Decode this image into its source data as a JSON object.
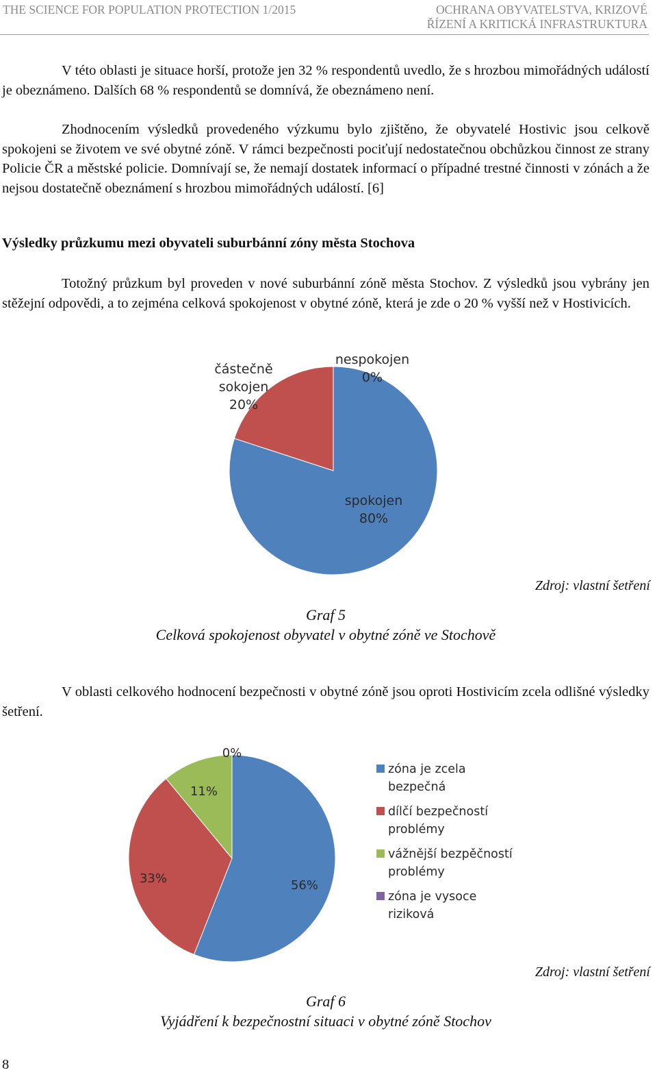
{
  "header": {
    "left": "THE SCIENCE FOR POPULATION PROTECTION 1/2015",
    "right_line1": "OCHRANA OBYVATELSTVA, KRIZOVÉ",
    "right_line2": "ŘÍZENÍ A KRITICKÁ INFRASTRUKTURA"
  },
  "body": {
    "p1": "V této oblasti je situace horší, protože jen 32 % respondentů uvedlo, že s hrozbou mimořádných událostí je obeznámeno. Dalších 68 % respondentů se domnívá, že obeznámeno není.",
    "p2": "Zhodnocením výsledků provedeného výzkumu bylo zjištěno, že obyvatelé Hostivic jsou celkově spokojeni se životem ve své obytné zóně. V rámci bezpečnosti pociťují nedostatečnou obchůzkou činnost ze strany Policie ČR a městské policie. Domnívají se, že nemají dostatek informací o případné trestné činnosti v zónách a že nejsou dostatečně obeznámení s hrozbou mimořádných událostí. [6]",
    "heading": "Výsledky průzkumu mezi obyvateli suburbánní zóny města Stochova",
    "p3": "Totožný průzkum byl proveden v nové suburbánní zóně města Stochov. Z výsledků jsou vybrány jen stěžejní odpovědi, a to zejména celková spokojenost v obytné zóně, která je zde o 20 % vyšší než v Hostivicích.",
    "p4": "V oblasti celkového hodnocení bezpečnosti v obytné zóně jsou oproti Hostivicím zcela odlišné výsledky šetření."
  },
  "figure5": {
    "source": "Zdroj: vlastní šetření",
    "caption_line1": "Graf 5",
    "caption_line2": "Celková spokojenost obyvatel v  obytné zóně ve Stochově"
  },
  "figure6": {
    "source": "Zdroj: vlastní šetření",
    "caption_line1": "Graf 6",
    "caption_line2": "Vyjádření k bezpečnostní situaci v obytné zóně Stochov"
  },
  "page_number": "8",
  "chart_data": [
    {
      "type": "pie",
      "title": "",
      "slices": [
        {
          "label_lines": [
            "spokojen"
          ],
          "pct_label": "80%",
          "value": 80,
          "color": "#4f81bd"
        },
        {
          "label_lines": [
            "částečně",
            "sokojen"
          ],
          "pct_label": "20%",
          "value": 20,
          "color": "#c0504d"
        },
        {
          "label_lines": [
            "nespokojen"
          ],
          "pct_label": "0%",
          "value": 0,
          "color": "#9bbb59"
        }
      ]
    },
    {
      "type": "pie",
      "title": "",
      "legend_position": "right",
      "slices": [
        {
          "legend_lines": [
            "zóna je zcela",
            "bezpečná"
          ],
          "pct_label": "56%",
          "value": 56,
          "color": "#4f81bd"
        },
        {
          "legend_lines": [
            "dílčí bezpečností",
            "problémy"
          ],
          "pct_label": "33%",
          "value": 33,
          "color": "#c0504d"
        },
        {
          "legend_lines": [
            "vážnější bezpěčností",
            "problémy"
          ],
          "pct_label": "11%",
          "value": 11,
          "color": "#9bbb59"
        },
        {
          "legend_lines": [
            "zóna je vysoce",
            "riziková"
          ],
          "pct_label": "0%",
          "value": 0,
          "color": "#8064a2"
        }
      ]
    }
  ]
}
